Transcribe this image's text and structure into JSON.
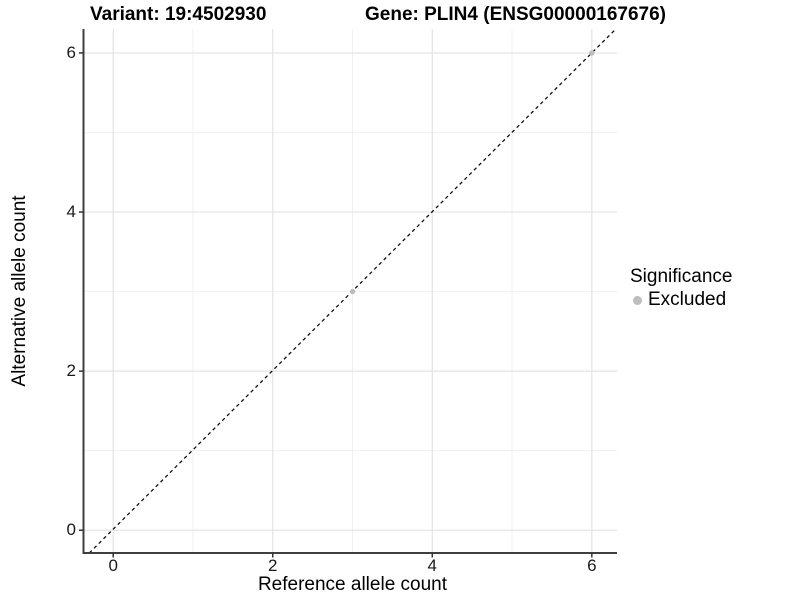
{
  "chart_data": {
    "type": "scatter",
    "title_variant": "Variant: 19:4502930",
    "title_gene": "Gene: PLIN4 (ENSG00000167676)",
    "xlabel": "Reference allele count",
    "ylabel": "Alternative allele count",
    "xlim": [
      -0.3,
      6.3
    ],
    "ylim": [
      -0.3,
      6.3
    ],
    "x_ticks": [
      0,
      2,
      4,
      6
    ],
    "y_ticks": [
      0,
      2,
      4,
      6
    ],
    "x_tick_labels": [
      "0",
      "2",
      "4",
      "6"
    ],
    "y_tick_labels": [
      "0",
      "2",
      "4",
      "6"
    ],
    "x_minor_ticks": [
      1,
      3,
      5
    ],
    "y_minor_ticks": [
      1,
      3,
      5
    ],
    "grid": true,
    "identity_line": {
      "equation": "y = x",
      "style": "dashed",
      "color": "#111111"
    },
    "series": [
      {
        "name": "Excluded",
        "color": "#bdbdbd",
        "points": [
          [
            3,
            3
          ],
          [
            6,
            6
          ]
        ]
      }
    ],
    "legend": {
      "title": "Significance",
      "position": "right",
      "items": [
        {
          "label": "Excluded",
          "color": "#bdbdbd"
        }
      ]
    },
    "style": {
      "background": "#ffffff",
      "major_grid_color": "#e3e3e3",
      "minor_grid_color": "#f0f0f0",
      "axis_line_color": "#3f3f3f",
      "tick_color": "#333333",
      "point_color": "#bdbdbd"
    }
  }
}
